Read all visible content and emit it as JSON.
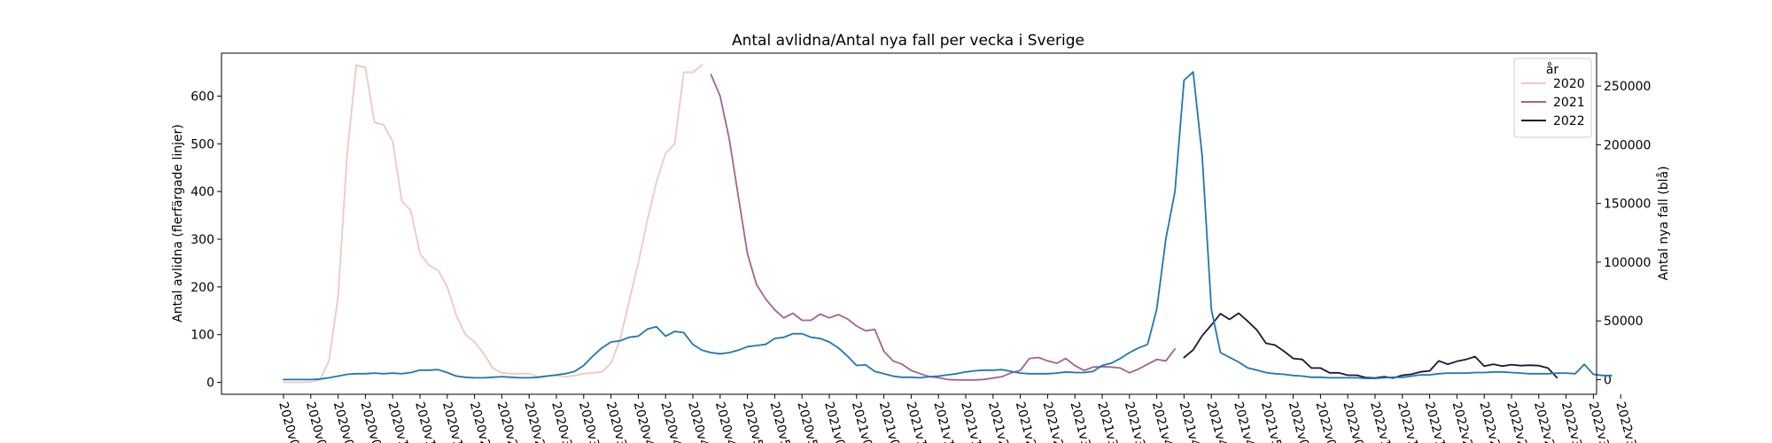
{
  "chart_data": {
    "type": "line",
    "title": "Antal avlidna/Antal nya fall per vecka i Sverige",
    "ylabel_left": "Antal avlidna (flerfärgade linjer)",
    "ylabel_right": "Antal nya fall (blå)",
    "ylim_left": [
      -25,
      690
    ],
    "yticks_left": [
      0,
      100,
      200,
      300,
      400,
      500,
      600
    ],
    "ylim_right": [
      -12500,
      278000
    ],
    "yticks_right": [
      0,
      50000,
      100000,
      150000,
      200000,
      250000
    ],
    "x_ticks": [
      "2020v0",
      "2020v0",
      "2020v0",
      "2020v0",
      "2020v1",
      "2020v1",
      "2020v1",
      "2020v2",
      "2020v2",
      "2020v2",
      "2020v3",
      "2020v3",
      "2020v3",
      "2020v4",
      "2020v4",
      "2020v4",
      "2020v4",
      "2020v5",
      "2020v5",
      "2020v5",
      "2021v0",
      "2021v0",
      "2021v0",
      "2021v1",
      "2021v1",
      "2021v1",
      "2021v2",
      "2021v2",
      "2021v2",
      "2021v3",
      "2021v3",
      "2021v3",
      "2021v4",
      "2021v4",
      "2021v4",
      "2021v4",
      "2021v5",
      "2022v0",
      "2022v0",
      "2022v0",
      "2022v1",
      "2022v1",
      "2022v1",
      "2022v2",
      "2022v2",
      "2022v2",
      "2022v2",
      "2022v3",
      "2022v3",
      "2022v3"
    ],
    "legend": {
      "title": "år",
      "placement": "top-right",
      "entries": [
        {
          "label": "2020",
          "color": "#f0c8bf"
        },
        {
          "label": "2021",
          "color": "#a6628f"
        },
        {
          "label": "2022",
          "color": "#1c1733"
        }
      ]
    },
    "series": [
      {
        "name": "2020",
        "axis": "left",
        "color": "#f0c8bf",
        "x_start": 0,
        "values": [
          0,
          0,
          0,
          1,
          5,
          45,
          180,
          480,
          665,
          660,
          545,
          540,
          505,
          380,
          360,
          270,
          245,
          235,
          200,
          140,
          100,
          85,
          60,
          30,
          20,
          18,
          18,
          18,
          12,
          14,
          14,
          12,
          14,
          18,
          20,
          22,
          40,
          90,
          170,
          250,
          340,
          420,
          480,
          500,
          650,
          650,
          665
        ]
      },
      {
        "name": "2021",
        "axis": "left",
        "color": "#a6628f",
        "x_start": 47,
        "values": [
          645,
          600,
          510,
          390,
          270,
          205,
          175,
          152,
          135,
          145,
          130,
          130,
          143,
          135,
          142,
          133,
          118,
          108,
          111,
          65,
          45,
          38,
          25,
          18,
          12,
          10,
          6,
          5,
          5,
          5,
          6,
          9,
          12,
          20,
          25,
          50,
          52,
          45,
          40,
          50,
          35,
          25,
          32,
          33,
          32,
          30,
          20,
          28,
          38,
          48,
          45,
          70
        ]
      },
      {
        "name": "2022",
        "axis": "left",
        "color": "#1c1733",
        "x_start": 99,
        "values": [
          52,
          68,
          98,
          120,
          144,
          132,
          145,
          128,
          110,
          82,
          78,
          65,
          50,
          48,
          30,
          30,
          20,
          20,
          15,
          15,
          10,
          9,
          12,
          9,
          15,
          17,
          22,
          24,
          45,
          38,
          44,
          48,
          54,
          34,
          38,
          34,
          37,
          35,
          36,
          35,
          30,
          10
        ]
      },
      {
        "name": "nya fall",
        "axis": "right",
        "color": "#1f77b4",
        "x_start": 0,
        "values": [
          0,
          0,
          0,
          0,
          500,
          1500,
          3000,
          4500,
          5000,
          5000,
          5500,
          5000,
          5500,
          5000,
          6000,
          8000,
          8000,
          8500,
          6000,
          3000,
          2000,
          1500,
          1500,
          2000,
          2500,
          2000,
          1500,
          1500,
          2000,
          3000,
          4000,
          5000,
          7000,
          12000,
          20000,
          27000,
          32000,
          33000,
          36000,
          37000,
          43000,
          45000,
          37000,
          41000,
          40000,
          30000,
          25000,
          23000,
          22000,
          23000,
          25000,
          28000,
          29000,
          30000,
          35000,
          36000,
          39000,
          39000,
          36000,
          35000,
          32000,
          27000,
          20000,
          12000,
          12500,
          7000,
          5000,
          3000,
          2000,
          2000,
          1500,
          2500,
          3000,
          4000,
          5000,
          6500,
          7500,
          8000,
          8000,
          8500,
          7000,
          5500,
          5000,
          5000,
          5000,
          5500,
          6500,
          6000,
          6000,
          7000,
          12000,
          14000,
          18000,
          23000,
          27000,
          30000,
          60000,
          120000,
          160000,
          255000,
          262000,
          190000,
          60000,
          23000,
          19000,
          15000,
          10000,
          8000,
          6000,
          5000,
          4500,
          3500,
          3000,
          2000,
          2000,
          1500,
          1500,
          1500,
          1500,
          1000,
          1000,
          1500,
          2000,
          2000,
          3000,
          4000,
          4000,
          5000,
          5500,
          5500,
          5500,
          6000,
          6000,
          6500,
          6500,
          6000,
          5500,
          5000,
          5000,
          5000,
          5500,
          5500,
          5000,
          13000,
          4500,
          3500,
          3500
        ]
      }
    ]
  }
}
